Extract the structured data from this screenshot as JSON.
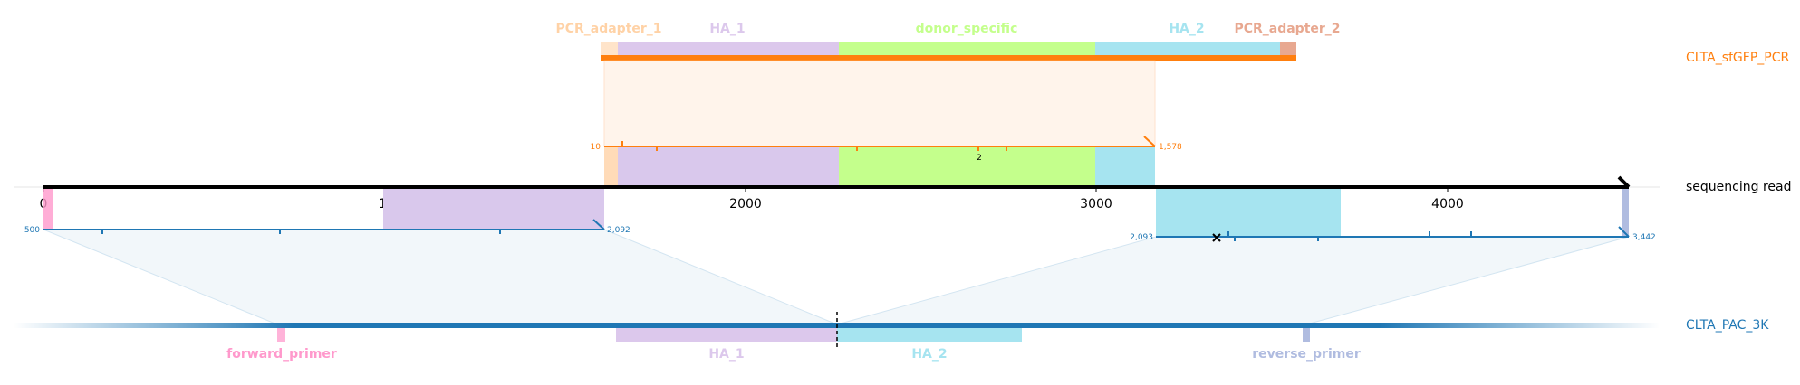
{
  "references": {
    "top": {
      "name": "CLTA_sfGFP_PCR",
      "color": "#ff7f0e"
    },
    "read": {
      "name": "sequencing read",
      "color": "#000000"
    },
    "bottom": {
      "name": "CLTA_PAC_3K",
      "color": "#1f77b4"
    }
  },
  "top_features": [
    {
      "label": "PCR_adapter_1",
      "color": "#ffd2a6"
    },
    {
      "label": "HA_1",
      "color": "#dcc8ec"
    },
    {
      "label": "donor_specific",
      "color": "#c4ff8c"
    },
    {
      "label": "HA_2",
      "color": "#a6e4f0"
    },
    {
      "label": "PCR_adapter_2",
      "color": "#e8a890"
    }
  ],
  "bottom_features": [
    {
      "label": "forward_primer",
      "color": "#ff99cc"
    },
    {
      "label": "HA_1",
      "color": "#dcc8ec"
    },
    {
      "label": "HA_2",
      "color": "#a6e4f0"
    },
    {
      "label": "reverse_primer",
      "color": "#b0bce0"
    }
  ],
  "read_axis": {
    "ticks": [
      "0",
      "1000",
      "2000",
      "3000",
      "4000"
    ]
  },
  "alignments": {
    "top": {
      "start": "10",
      "end": "1,578",
      "indel_label": "2"
    },
    "bottom_left": {
      "start": "500",
      "end": "2,092"
    },
    "bottom_right": {
      "start": "2,093",
      "end": "3,442"
    }
  }
}
